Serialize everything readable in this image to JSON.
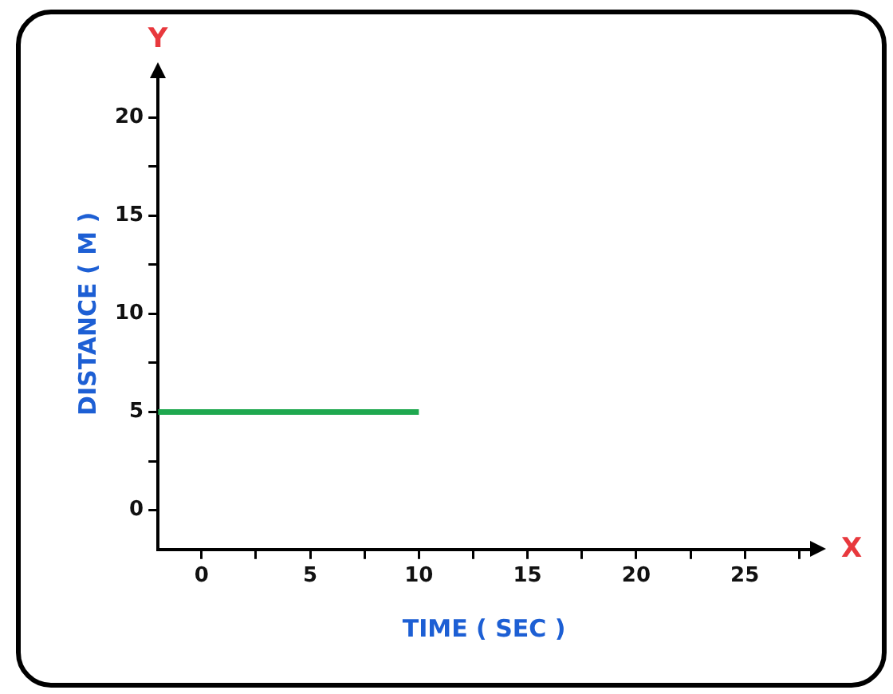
{
  "chart_data": {
    "type": "line",
    "xlabel": "TIME ( SEC )",
    "ylabel": "DISTANCE ( M )",
    "annotations": [
      "Y",
      "X"
    ],
    "series": [
      {
        "color": "#1fa84f",
        "x": [
          -2,
          10
        ],
        "values": [
          5,
          5
        ]
      }
    ],
    "xlim": [
      -2,
      28
    ],
    "ylim": [
      -2,
      22
    ],
    "xticks": [
      0,
      {
        "value": 2.5,
        "label": null
      },
      5,
      {
        "value": 7.5,
        "label": null
      },
      10,
      {
        "value": 12.5,
        "label": null
      },
      15,
      {
        "value": 17.5,
        "label": null
      },
      20,
      {
        "value": 22.5,
        "label": null
      },
      25,
      {
        "value": 27.5,
        "label": null
      }
    ],
    "yticks": [
      0,
      {
        "value": 2.5,
        "label": null
      },
      5,
      {
        "value": 7.5,
        "label": null
      },
      10,
      {
        "value": 12.5,
        "label": null
      },
      15,
      {
        "value": 17.5,
        "label": null
      },
      20
    ],
    "grid": false,
    "legend": false,
    "marker": "none",
    "line_style": "solid"
  }
}
